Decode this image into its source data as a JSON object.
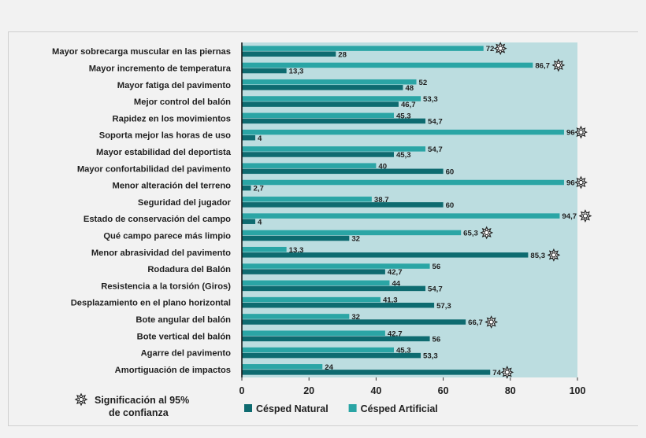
{
  "chart_data": {
    "type": "bar",
    "orientation": "horizontal",
    "categories": [
      "Mayor sobrecarga muscular en las piernas",
      "Mayor incremento de temperatura",
      "Mayor fatiga del pavimento",
      "Mejor control del balón",
      "Rapidez en los movimientos",
      "Soporta mejor las horas de uso",
      "Mayor estabilidad del deportista",
      "Mayor confortabilidad del pavimento",
      "Menor alteración del terreno",
      "Seguridad del jugador",
      "Estado de conservación del campo",
      "Qué campo parece más limpio",
      "Menor abrasividad del pavimento",
      "Rodadura del Balón",
      "Resistencia a la torsión (Giros)",
      "Desplazamiento en el plano horizontal",
      "Bote angular del balón",
      "Bote vertical del balón",
      "Agarre del pavimento",
      "Amortiguación de impactos"
    ],
    "series": [
      {
        "name": "Césped Artificial",
        "color": "#2aa5a5",
        "values": [
          72,
          86.7,
          52,
          53.3,
          45.3,
          96,
          54.7,
          40,
          96,
          38.7,
          94.7,
          65.3,
          13.3,
          56,
          44,
          41.3,
          32,
          42.7,
          45.3,
          24
        ],
        "labels": [
          "72",
          "86,7",
          "52",
          "53,3",
          "45,3",
          "96",
          "54,7",
          "40",
          "96",
          "38,7",
          "94,7",
          "65,3",
          "13,3",
          "56",
          "44",
          "41,3",
          "32",
          "42,7",
          "45,3",
          "24"
        ],
        "significant": [
          true,
          true,
          false,
          false,
          false,
          true,
          false,
          false,
          true,
          false,
          true,
          true,
          false,
          false,
          false,
          false,
          false,
          false,
          false,
          false
        ]
      },
      {
        "name": "Césped Natural",
        "color": "#0e6b70",
        "values": [
          28,
          13.3,
          48,
          46.7,
          54.7,
          4,
          45.3,
          60,
          2.7,
          60,
          4,
          32,
          85.3,
          42.7,
          54.7,
          57.3,
          66.7,
          56,
          53.3,
          74
        ],
        "labels": [
          "28",
          "13,3",
          "48",
          "46,7",
          "54,7",
          "4",
          "45,3",
          "60",
          "2,7",
          "60",
          "4",
          "32",
          "85,3",
          "42,7",
          "54,7",
          "57,3",
          "66,7",
          "56",
          "53,3",
          "74"
        ],
        "significant": [
          false,
          false,
          false,
          false,
          false,
          false,
          false,
          false,
          false,
          false,
          false,
          false,
          true,
          false,
          false,
          false,
          true,
          false,
          false,
          true
        ]
      }
    ],
    "xlim": [
      0,
      100
    ],
    "xticks": [
      "0",
      "20",
      "40",
      "60",
      "80",
      "100"
    ],
    "legend_order": [
      "Césped Natural",
      "Césped Artificial"
    ],
    "significance_note_lines": [
      "Significación al 95%",
      "de confianza"
    ],
    "plot_background": "#bcdde0",
    "grid": false
  }
}
